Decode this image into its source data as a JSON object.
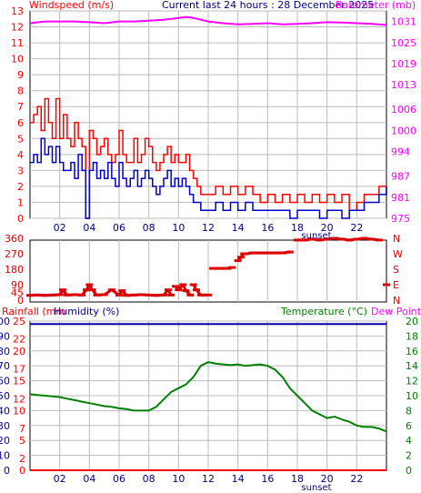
{
  "header": {
    "left_title": "Windspeed (m/s)",
    "center_title": "Current last 24 hours : 28 December 2025",
    "right_title": "Barometer (mb)"
  },
  "colors": {
    "wind_gust": "#ff0000",
    "wind_avg": "#0000cc",
    "barometer": "#ff00ff",
    "wind_dir": "#dd0000",
    "humidity": "#0000aa",
    "rainfall": "#ff0000",
    "temperature": "#008000",
    "dew_point": "#ff00ff",
    "grid": "#bbbbbb",
    "frame": "#000000"
  },
  "chart_data": [
    {
      "type": "line",
      "panel": "wind-barometer",
      "x_ticks": [
        "02",
        "04",
        "06",
        "08",
        "10",
        "12",
        "14",
        "16",
        "18",
        "20",
        "22"
      ],
      "sunset_label": "sunset",
      "left_axis": {
        "label": "Windspeed (m/s)",
        "ylim": [
          0,
          13
        ],
        "ticks": [
          0,
          1,
          2,
          3,
          4,
          5,
          6,
          7,
          8,
          9,
          10,
          11,
          12,
          13
        ]
      },
      "right_axis": {
        "label": "Barometer (mb)",
        "ylim": [
          975,
          1034
        ],
        "ticks": [
          975,
          981,
          987,
          994,
          1000,
          1006,
          1013,
          1019,
          1025,
          1031
        ]
      },
      "series": [
        {
          "name": "Windspeed gust",
          "axis": "left",
          "hours": [
            0,
            0.25,
            0.5,
            0.75,
            1,
            1.25,
            1.5,
            1.75,
            2,
            2.25,
            2.5,
            2.75,
            3,
            3.25,
            3.5,
            3.75,
            4,
            4.25,
            4.5,
            4.75,
            5,
            5.25,
            5.5,
            5.75,
            6,
            6.25,
            6.5,
            6.75,
            7,
            7.25,
            7.5,
            7.75,
            8,
            8.25,
            8.5,
            8.75,
            9,
            9.25,
            9.5,
            9.75,
            10,
            10.25,
            10.5,
            10.75,
            11,
            11.25,
            11.5,
            11.75,
            12,
            12.5,
            13,
            13.5,
            14,
            14.5,
            15,
            15.5,
            16,
            16.5,
            17,
            17.5,
            18,
            18.5,
            19,
            19.5,
            20,
            20.5,
            21,
            21.5,
            22,
            22.5,
            23,
            23.5,
            24
          ],
          "values": [
            6,
            6.5,
            7,
            5.5,
            7.5,
            6,
            5,
            7.5,
            5,
            6.5,
            5,
            4.5,
            6,
            5,
            4.5,
            0,
            5.5,
            5,
            4,
            4.5,
            5,
            4,
            3.5,
            4,
            5.5,
            4,
            3.5,
            3.5,
            5,
            3.5,
            4,
            5,
            4.5,
            3.5,
            3,
            3.5,
            4,
            4.5,
            3.5,
            4,
            3.5,
            3.5,
            4,
            3,
            2.5,
            2,
            1.5,
            1.5,
            1.5,
            2,
            1.5,
            2,
            1.5,
            2,
            1.5,
            1,
            1.5,
            1,
            1.5,
            1,
            1.5,
            1,
            1.5,
            1,
            1.5,
            1,
            1.5,
            0.5,
            1,
            1.5,
            1.5,
            2,
            1.5
          ]
        },
        {
          "name": "Windspeed average",
          "axis": "left",
          "hours": [
            0,
            0.25,
            0.5,
            0.75,
            1,
            1.25,
            1.5,
            1.75,
            2,
            2.25,
            2.5,
            2.75,
            3,
            3.25,
            3.5,
            3.75,
            4,
            4.25,
            4.5,
            4.75,
            5,
            5.25,
            5.5,
            5.75,
            6,
            6.25,
            6.5,
            6.75,
            7,
            7.25,
            7.5,
            7.75,
            8,
            8.25,
            8.5,
            8.75,
            9,
            9.25,
            9.5,
            9.75,
            10,
            10.25,
            10.5,
            10.75,
            11,
            11.25,
            11.5,
            11.75,
            12,
            12.5,
            13,
            13.5,
            14,
            14.5,
            15,
            15.5,
            16,
            16.5,
            17,
            17.5,
            18,
            18.5,
            19,
            19.5,
            20,
            20.5,
            21,
            21.5,
            22,
            22.5,
            23,
            23.5,
            24
          ],
          "values": [
            3.5,
            4,
            3.5,
            5,
            4,
            4.5,
            3.5,
            4.5,
            3.5,
            3,
            3,
            3.5,
            2.5,
            4,
            3,
            0,
            3,
            3.5,
            2.5,
            3,
            2.5,
            3.5,
            2.5,
            2,
            3.5,
            2.5,
            2,
            2.5,
            3,
            2,
            2.5,
            3,
            2.5,
            2,
            1.5,
            2,
            2.5,
            3,
            2,
            2.5,
            2,
            2.5,
            2,
            1.5,
            1,
            1,
            0.5,
            0.5,
            0.5,
            1,
            0.5,
            1,
            0.5,
            1,
            0.5,
            0.5,
            0.5,
            0.5,
            0.5,
            0,
            0.5,
            0.5,
            0.5,
            0,
            0.5,
            0.5,
            0,
            0.5,
            0.5,
            1,
            1,
            1.5,
            2
          ]
        },
        {
          "name": "Barometer",
          "axis": "right",
          "hours": [
            0,
            1,
            2,
            3,
            4,
            5,
            6,
            7,
            8,
            9,
            10,
            10.5,
            11,
            12,
            13,
            14,
            15,
            16,
            17,
            18,
            19,
            20,
            21,
            22,
            23,
            24
          ],
          "values": [
            1030.5,
            1031,
            1031,
            1031,
            1030.8,
            1030.5,
            1031,
            1031,
            1031.2,
            1031.5,
            1032,
            1032.3,
            1032,
            1031,
            1030.5,
            1030.2,
            1030.3,
            1030.5,
            1030.2,
            1030.3,
            1030.5,
            1030.8,
            1030.7,
            1030.5,
            1030.3,
            1030
          ]
        }
      ]
    },
    {
      "type": "scatter",
      "panel": "wind-direction",
      "left_axis": {
        "ylim": [
          0,
          360
        ],
        "ticks": [
          0,
          45,
          90,
          180,
          270,
          360
        ]
      },
      "right_labels": [
        "N",
        "W",
        "S",
        "E",
        "N"
      ],
      "series": [
        {
          "name": "Wind direction",
          "hours": [
            0,
            0.5,
            1,
            1.5,
            2,
            2.2,
            2.5,
            3,
            3.5,
            3.8,
            4,
            4.2,
            4.5,
            5,
            5.5,
            6,
            6.2,
            6.5,
            7,
            7.5,
            8,
            8.5,
            9,
            9.3,
            9.5,
            9.8,
            10,
            10.3,
            10.5,
            10.8,
            11,
            11.2,
            11.5,
            12,
            12.3,
            12.6,
            13,
            13.3,
            13.6,
            14,
            14.2,
            14.4,
            14.5,
            15,
            15.5,
            16,
            16.5,
            17,
            17.5,
            18,
            18.5,
            19,
            19.5,
            20,
            20.5,
            21,
            21.5,
            22,
            22.5,
            23,
            23.5,
            24
          ],
          "values": [
            28,
            30,
            28,
            30,
            32,
            60,
            30,
            32,
            30,
            60,
            90,
            60,
            30,
            32,
            60,
            30,
            55,
            28,
            30,
            32,
            30,
            28,
            30,
            60,
            30,
            80,
            60,
            90,
            55,
            30,
            90,
            60,
            30,
            30,
            185,
            185,
            185,
            185,
            190,
            230,
            250,
            270,
            270,
            275,
            275,
            275,
            275,
            275,
            280,
            350,
            350,
            355,
            350,
            355,
            360,
            355,
            350,
            355,
            360,
            355,
            350,
            90
          ]
        }
      ]
    },
    {
      "type": "line",
      "panel": "rain-humidity-temperature",
      "x_ticks": [
        "02",
        "04",
        "06",
        "08",
        "10",
        "12",
        "14",
        "16",
        "18",
        "20",
        "22"
      ],
      "sunset_label": "sunset",
      "left_labels": {
        "rainfall": "Rainfall (mm",
        "humidity": "Humidity (%)"
      },
      "right_labels": {
        "temperature": "Temperature (°C)",
        "dew_point": "Dew Point"
      },
      "left_axis_rain": {
        "ylim": [
          0,
          25
        ],
        "ticks": [
          0,
          2,
          5,
          7,
          10,
          12,
          15,
          17,
          20,
          22,
          25
        ]
      },
      "left_axis_humidity": {
        "ylim": [
          0,
          100
        ],
        "ticks": [
          0,
          10,
          20,
          30,
          40,
          50,
          60,
          70,
          80,
          90,
          100
        ]
      },
      "right_axis_temp": {
        "ylim": [
          0,
          20
        ],
        "ticks": [
          0,
          2,
          4,
          6,
          8,
          10,
          12,
          14,
          16,
          18,
          20
        ]
      },
      "series": [
        {
          "name": "Temperature",
          "axis": "temp",
          "hours": [
            0,
            0.5,
            1,
            1.5,
            2,
            2.5,
            3,
            3.5,
            4,
            4.5,
            5,
            5.5,
            6,
            6.5,
            7,
            7.5,
            8,
            8.5,
            9,
            9.5,
            10,
            10.5,
            11,
            11.5,
            12,
            12.5,
            13,
            13.5,
            14,
            14.5,
            15,
            15.5,
            16,
            16.5,
            17,
            17.5,
            18,
            18.5,
            19,
            19.5,
            20,
            20.5,
            21,
            21.5,
            22,
            22.5,
            23,
            23.5,
            24
          ],
          "values": [
            10.2,
            10.1,
            10,
            9.9,
            9.8,
            9.6,
            9.4,
            9.2,
            9,
            8.8,
            8.6,
            8.5,
            8.3,
            8.2,
            8,
            8,
            8,
            8.5,
            9.5,
            10.5,
            11,
            11.5,
            12.5,
            14,
            14.5,
            14.3,
            14.2,
            14.1,
            14.2,
            14,
            14.1,
            14.2,
            14,
            13.5,
            12.5,
            11,
            10,
            9,
            8,
            7.5,
            7,
            7.2,
            6.8,
            6.5,
            6,
            5.8,
            5.8,
            5.6,
            5.2
          ]
        },
        {
          "name": "Humidity",
          "axis": "humidity",
          "hours": [
            0,
            24
          ],
          "values": [
            98,
            98
          ]
        },
        {
          "name": "Rainfall",
          "axis": "rain",
          "hours": [
            0,
            24
          ],
          "values": [
            0,
            0
          ]
        }
      ]
    }
  ]
}
